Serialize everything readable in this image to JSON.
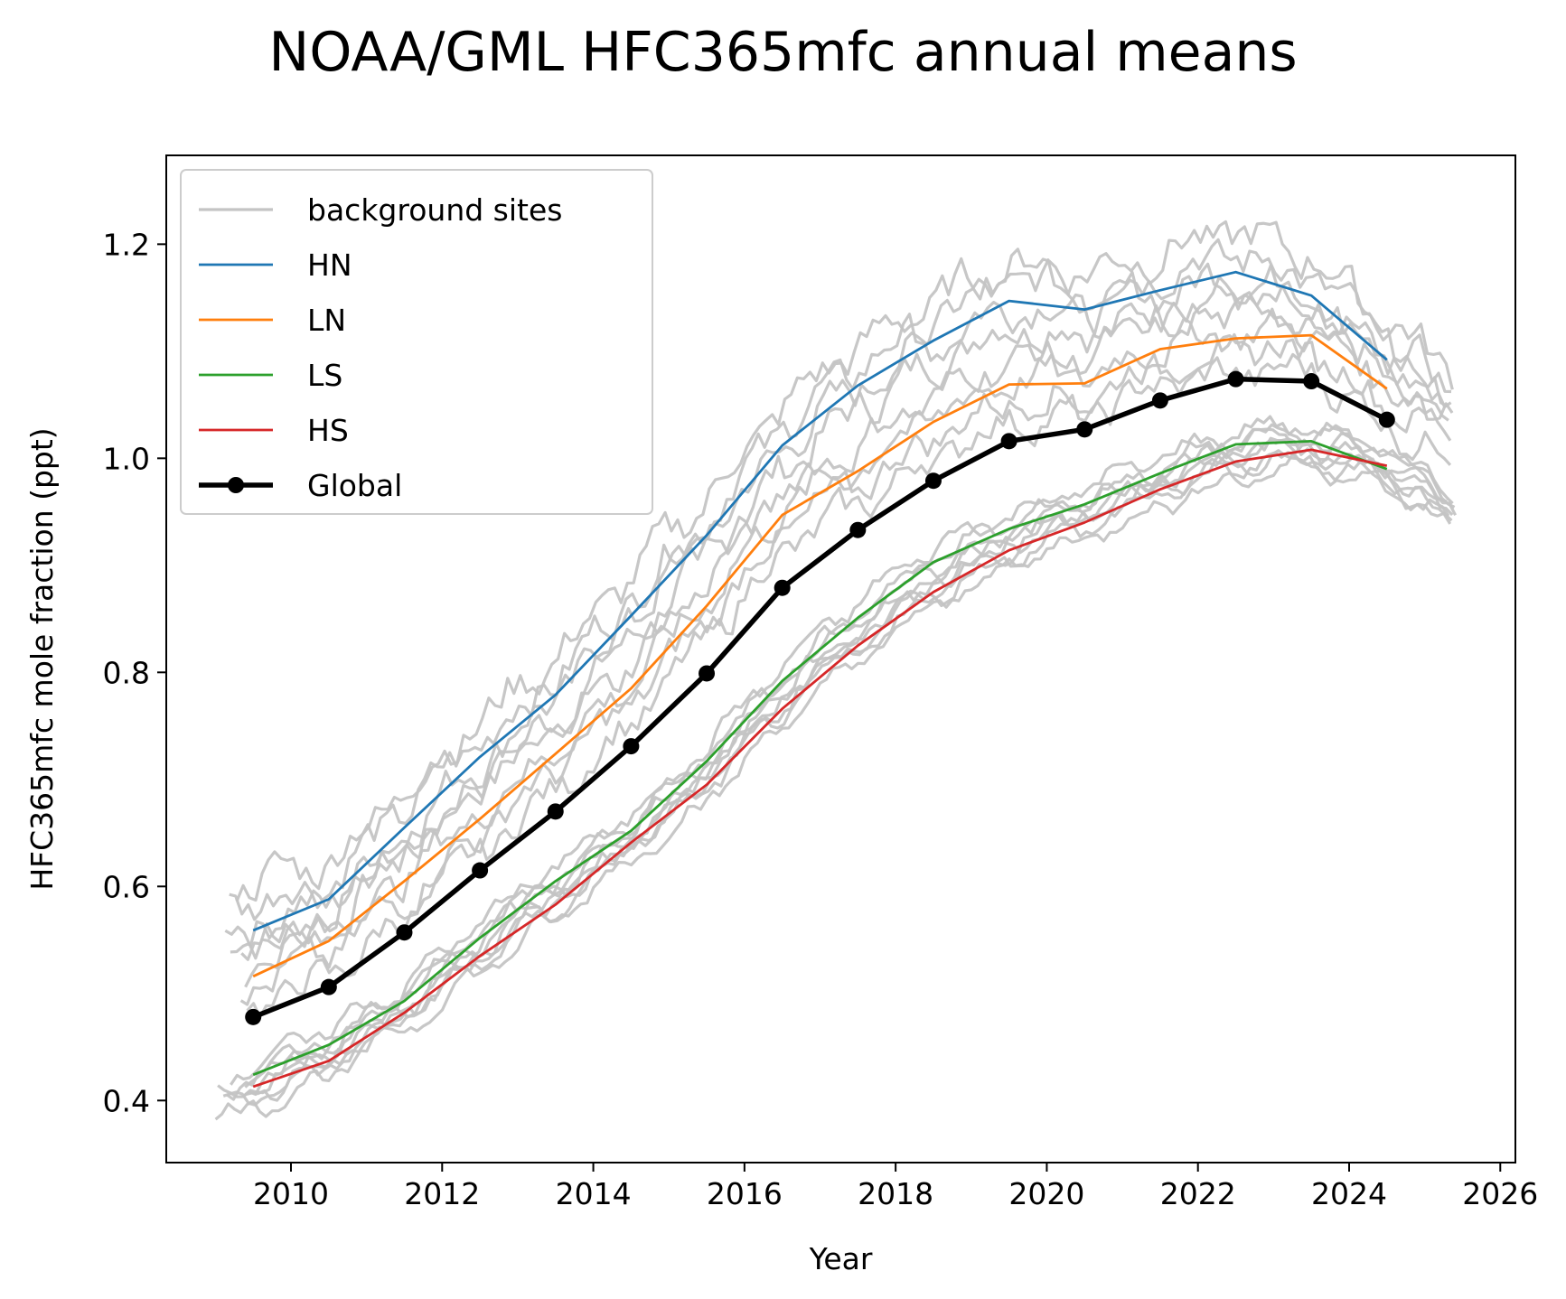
{
  "chart_data": {
    "type": "line",
    "title": "NOAA/GML HFC365mfc annual means",
    "xlabel": "Year",
    "ylabel": "HFC365mfc mole fraction (ppt)",
    "xlim": [
      2008.35,
      2026.2
    ],
    "ylim": [
      0.342,
      1.283
    ],
    "x_ticks": [
      2010,
      2012,
      2014,
      2016,
      2018,
      2020,
      2022,
      2024,
      2026
    ],
    "y_ticks": [
      0.4,
      0.6,
      0.8,
      1.0,
      1.2
    ],
    "x_tick_labels": [
      "2010",
      "2012",
      "2014",
      "2016",
      "2018",
      "2020",
      "2022",
      "2024",
      "2026"
    ],
    "y_tick_labels": [
      "0.4",
      "0.6",
      "0.8",
      "1.0",
      "1.2"
    ],
    "grid": false,
    "legend_position": "upper-left",
    "legend": [
      "background sites",
      "HN",
      "LN",
      "LS",
      "HS",
      "Global"
    ],
    "colors": {
      "background": "#c4c4c4",
      "HN": "#1f77b4",
      "LN": "#ff7f0e",
      "LS": "#2ca02c",
      "HS": "#d62728",
      "Global": "#000000"
    },
    "x": [
      2009.5,
      2010.5,
      2011.5,
      2012.5,
      2013.5,
      2014.5,
      2015.5,
      2016.5,
      2017.5,
      2018.5,
      2019.5,
      2020.5,
      2021.5,
      2022.5,
      2023.5,
      2024.5
    ],
    "series": [
      {
        "name": "HN",
        "values": [
          0.559,
          0.588,
          0.655,
          0.721,
          0.779,
          0.853,
          0.928,
          1.012,
          1.068,
          1.11,
          1.147,
          1.139,
          1.157,
          1.174,
          1.152,
          1.092
        ]
      },
      {
        "name": "LN",
        "values": [
          0.516,
          0.549,
          0.605,
          0.663,
          0.724,
          0.785,
          0.862,
          0.947,
          0.988,
          1.034,
          1.069,
          1.07,
          1.102,
          1.112,
          1.115,
          1.065
        ]
      },
      {
        "name": "LS",
        "values": [
          0.424,
          0.452,
          0.493,
          0.552,
          0.605,
          0.652,
          0.717,
          0.792,
          0.851,
          0.903,
          0.934,
          0.957,
          0.986,
          1.013,
          1.016,
          0.99
        ]
      },
      {
        "name": "HS",
        "values": [
          0.413,
          0.437,
          0.482,
          0.535,
          0.583,
          0.641,
          0.695,
          0.766,
          0.825,
          0.875,
          0.914,
          0.94,
          0.971,
          0.997,
          1.008,
          0.993
        ]
      },
      {
        "name": "Global",
        "values": [
          0.478,
          0.506,
          0.557,
          0.615,
          0.67,
          0.731,
          0.799,
          0.879,
          0.933,
          0.979,
          1.016,
          1.027,
          1.054,
          1.074,
          1.072,
          1.036
        ]
      }
    ],
    "background_sites": {
      "name": "background sites",
      "note": "monthly-mean records from background stations",
      "station_groups": [
        {
          "group": "HN",
          "start": 2009.1,
          "end": 2025.45,
          "anchors": [
            [
              2009.1,
              0.57
            ],
            [
              2010.5,
              0.595
            ],
            [
              2011.5,
              0.662
            ],
            [
              2012.5,
              0.727
            ],
            [
              2013.5,
              0.786
            ],
            [
              2014.5,
              0.861
            ],
            [
              2015.5,
              0.935
            ],
            [
              2016.5,
              1.02
            ],
            [
              2017.5,
              1.076
            ],
            [
              2018.5,
              1.118
            ],
            [
              2019.5,
              1.155
            ],
            [
              2020.5,
              1.147
            ],
            [
              2021.5,
              1.165
            ],
            [
              2022.5,
              1.182
            ],
            [
              2023.5,
              1.16
            ],
            [
              2024.5,
              1.1
            ],
            [
              2025.45,
              1.05
            ]
          ]
        },
        {
          "group": "LN",
          "start": 2009.3,
          "end": 2025.4,
          "anchors": [
            [
              2009.3,
              0.512
            ],
            [
              2010.5,
              0.545
            ],
            [
              2011.5,
              0.6
            ],
            [
              2012.5,
              0.66
            ],
            [
              2013.5,
              0.72
            ],
            [
              2014.5,
              0.781
            ],
            [
              2015.5,
              0.858
            ],
            [
              2016.5,
              0.943
            ],
            [
              2017.5,
              0.984
            ],
            [
              2018.5,
              1.03
            ],
            [
              2019.5,
              1.065
            ],
            [
              2020.5,
              1.066
            ],
            [
              2021.5,
              1.098
            ],
            [
              2022.5,
              1.108
            ],
            [
              2023.5,
              1.111
            ],
            [
              2024.5,
              1.06
            ],
            [
              2025.4,
              1.03
            ]
          ]
        },
        {
          "group": "LS",
          "start": 2009.2,
          "end": 2025.45,
          "anchors": [
            [
              2009.2,
              0.41
            ],
            [
              2010.5,
              0.452
            ],
            [
              2011.5,
              0.493
            ],
            [
              2012.5,
              0.552
            ],
            [
              2013.5,
              0.605
            ],
            [
              2014.5,
              0.652
            ],
            [
              2015.5,
              0.717
            ],
            [
              2016.5,
              0.792
            ],
            [
              2017.5,
              0.851
            ],
            [
              2018.5,
              0.903
            ],
            [
              2019.5,
              0.934
            ],
            [
              2020.5,
              0.957
            ],
            [
              2021.5,
              0.986
            ],
            [
              2022.5,
              1.013
            ],
            [
              2023.5,
              1.016
            ],
            [
              2024.5,
              0.99
            ],
            [
              2025.45,
              0.955
            ]
          ]
        },
        {
          "group": "HS",
          "start": 2009.0,
          "end": 2025.45,
          "anchors": [
            [
              2009.0,
              0.395
            ],
            [
              2010.5,
              0.437
            ],
            [
              2011.5,
              0.482
            ],
            [
              2012.5,
              0.535
            ],
            [
              2013.5,
              0.583
            ],
            [
              2014.5,
              0.641
            ],
            [
              2015.5,
              0.695
            ],
            [
              2016.5,
              0.766
            ],
            [
              2017.5,
              0.825
            ],
            [
              2018.5,
              0.875
            ],
            [
              2019.5,
              0.914
            ],
            [
              2020.5,
              0.94
            ],
            [
              2021.5,
              0.971
            ],
            [
              2022.5,
              0.997
            ],
            [
              2023.5,
              1.008
            ],
            [
              2024.5,
              0.993
            ],
            [
              2025.45,
              0.94
            ]
          ]
        }
      ]
    }
  }
}
